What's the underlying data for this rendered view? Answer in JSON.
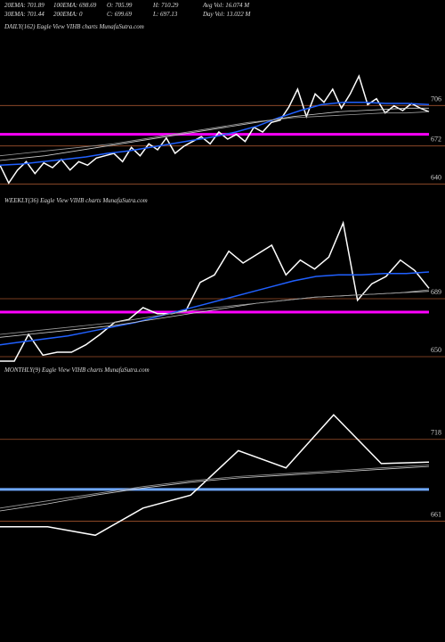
{
  "header": {
    "stats": [
      [
        "20EMA: 701.89",
        "100EMA: 698.69",
        "O: 705.99",
        "H: 710.29",
        "Avg Vol: 16.074  M"
      ],
      [
        "30EMA: 701.44",
        "200EMA: 0",
        "C: 699.69",
        "L: 697.13",
        "Day Vol: 13.022  M"
      ]
    ]
  },
  "chart_data": [
    {
      "type": "line",
      "title": "DAILY(162) Eagle  View  VIHB charts MunafaSutra.com",
      "ylim": [
        626,
        761
      ],
      "yticks": [
        706,
        672,
        640
      ],
      "grid_color": "#a0522d",
      "levels": [
        {
          "value": 678,
          "color": "#ff00ff"
        }
      ],
      "series": [
        {
          "color": "#ffffff",
          "width": 1.5,
          "values": [
            652,
            637,
            648,
            655,
            645,
            654,
            650,
            657,
            648,
            655,
            652,
            658,
            660,
            662,
            655,
            667,
            660,
            670,
            665,
            675,
            662,
            668,
            672,
            676,
            670,
            680,
            674,
            678,
            672,
            684,
            680,
            688,
            690,
            701,
            716,
            693,
            712,
            705,
            716,
            700,
            712,
            727,
            703,
            708,
            696,
            702,
            698,
            704,
            700,
            697
          ]
        },
        {
          "color": "#2060ff",
          "width": 1.5,
          "values": [
            652,
            653,
            655,
            657,
            659,
            662,
            664,
            667,
            670,
            673,
            676,
            680,
            685,
            692,
            698,
            703,
            705,
            705,
            704,
            704,
            703
          ]
        },
        {
          "color": "#cccccc",
          "width": 0.8,
          "values": [
            656,
            658,
            660,
            663,
            666,
            669,
            672,
            675,
            678,
            681,
            684,
            687,
            690,
            693,
            695,
            697,
            698,
            699,
            700,
            700
          ]
        },
        {
          "color": "#999999",
          "width": 0.8,
          "values": [
            660,
            662,
            664,
            666,
            668,
            670,
            673,
            676,
            679,
            682,
            685,
            688,
            690,
            692,
            693,
            694,
            695,
            696,
            696,
            697
          ]
        }
      ]
    },
    {
      "type": "line",
      "title": "WEEKLY(36) Eagle  View  VIHB charts MunafaSutra.com",
      "ylim": [
        644,
        746
      ],
      "yticks": [
        689,
        650
      ],
      "grid_color": "#a0522d",
      "levels": [
        {
          "value": 677,
          "color": "#ff00ff"
        }
      ],
      "series": [
        {
          "color": "#ffffff",
          "width": 1.5,
          "values": [
            644,
            644,
            662,
            648,
            650,
            650,
            655,
            662,
            670,
            672,
            680,
            676,
            676,
            678,
            697,
            702,
            718,
            710,
            716,
            722,
            702,
            712,
            706,
            714,
            737,
            685,
            696,
            701,
            712,
            705,
            693
          ]
        },
        {
          "color": "#2060ff",
          "width": 1.5,
          "values": [
            655,
            657,
            659,
            661,
            664,
            667,
            670,
            674,
            678,
            682,
            686,
            690,
            694,
            698,
            701,
            702,
            702,
            703,
            703,
            704
          ]
        },
        {
          "color": "#cccccc",
          "width": 0.8,
          "values": [
            660,
            662,
            664,
            666,
            668,
            671,
            674,
            677,
            680,
            683,
            685,
            687,
            688,
            689,
            690,
            691
          ]
        },
        {
          "color": "#999999",
          "width": 0.8,
          "values": [
            662,
            664,
            666,
            668,
            670,
            673,
            676,
            679,
            681,
            683,
            685,
            687,
            688,
            689,
            690,
            692
          ]
        }
      ]
    },
    {
      "type": "line",
      "title": "MONTHLY(9) Eagle  View  VIHB charts MunafaSutra.com",
      "ylim": [
        642,
        757
      ],
      "yticks": [
        718,
        661
      ],
      "grid_color": "#a0522d",
      "levels": [
        {
          "value": 680,
          "color": "#6fa8ff"
        }
      ],
      "series": [
        {
          "color": "#ffffff",
          "width": 1.5,
          "values": [
            654,
            654,
            648,
            667,
            676,
            707,
            695,
            732,
            698,
            699
          ]
        },
        {
          "color": "#cccccc",
          "width": 0.8,
          "values": [
            665,
            670,
            676,
            681,
            685,
            688,
            690,
            692,
            694,
            696
          ]
        },
        {
          "color": "#999999",
          "width": 0.8,
          "values": [
            667,
            672,
            677,
            682,
            686,
            689,
            691,
            693,
            695,
            697
          ]
        }
      ]
    }
  ]
}
